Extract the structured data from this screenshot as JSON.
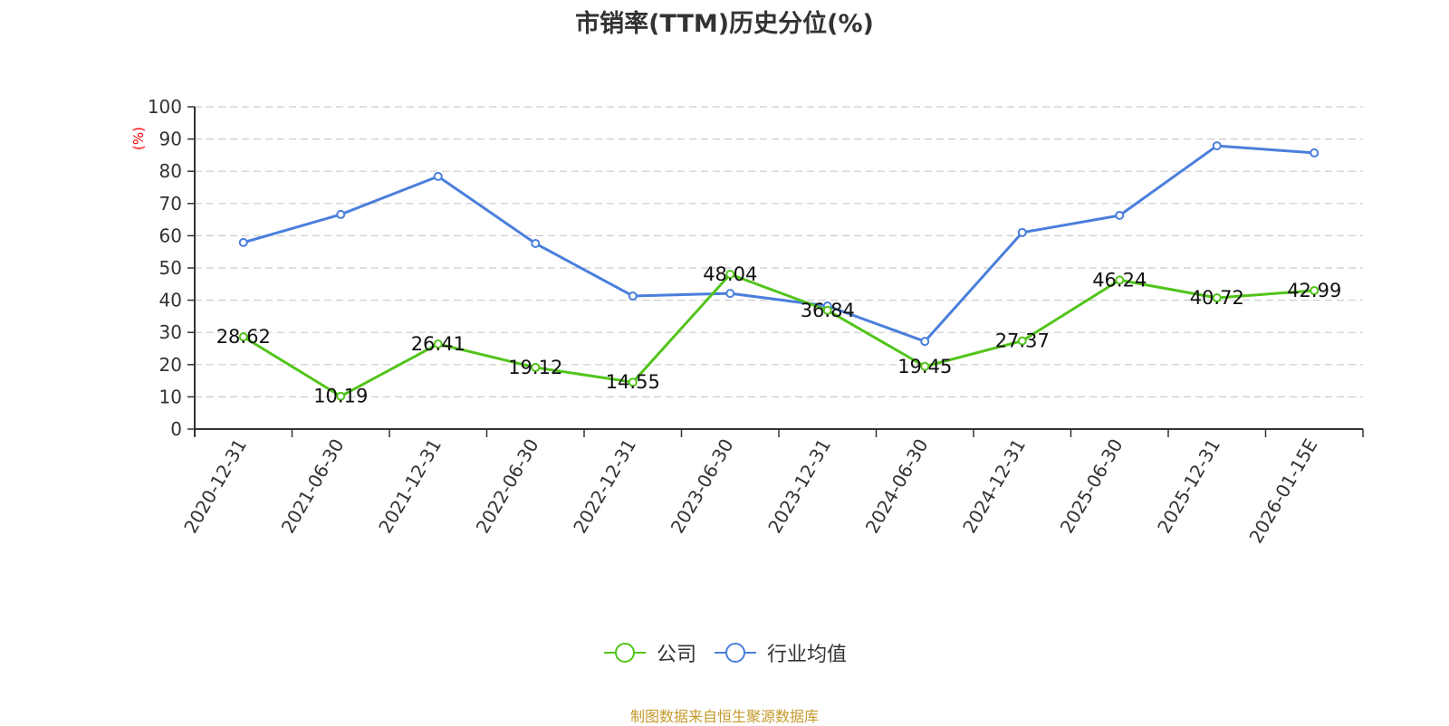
{
  "title": "市销率(TTM)历史分位(%)",
  "y_axis_unit_label": "(%)",
  "source_note": "制图数据来自恒生聚源数据库",
  "legend": [
    {
      "name": "公司",
      "color": "#52c41a"
    },
    {
      "name": "行业均值",
      "color": "#4a7fdc"
    }
  ],
  "chart_data": {
    "type": "line",
    "title": "市销率(TTM)历史分位(%)",
    "xlabel": "",
    "ylabel": "(%)",
    "ylim": [
      0,
      100
    ],
    "yticks": [
      0,
      10,
      20,
      30,
      40,
      50,
      60,
      70,
      80,
      90,
      100
    ],
    "grid": "horizontal dashed",
    "legend_position": "bottom",
    "categories": [
      "2020-12-31",
      "2021-06-30",
      "2021-12-31",
      "2022-06-30",
      "2022-12-31",
      "2023-06-30",
      "2023-12-31",
      "2024-06-30",
      "2024-12-31",
      "2025-06-30",
      "2025-12-31",
      "2026-01-15E"
    ],
    "series": [
      {
        "name": "公司",
        "color": "#52c41a",
        "labeled": true,
        "values": [
          28.62,
          10.19,
          26.41,
          19.12,
          14.55,
          48.04,
          36.84,
          19.45,
          27.37,
          46.24,
          40.72,
          42.99
        ]
      },
      {
        "name": "行业均值",
        "color": "#4a7fdc",
        "labeled": false,
        "values": [
          57.9,
          66.6,
          78.4,
          57.6,
          41.3,
          42.1,
          38.2,
          27.2,
          61.0,
          66.3,
          87.9,
          85.7
        ]
      }
    ]
  }
}
